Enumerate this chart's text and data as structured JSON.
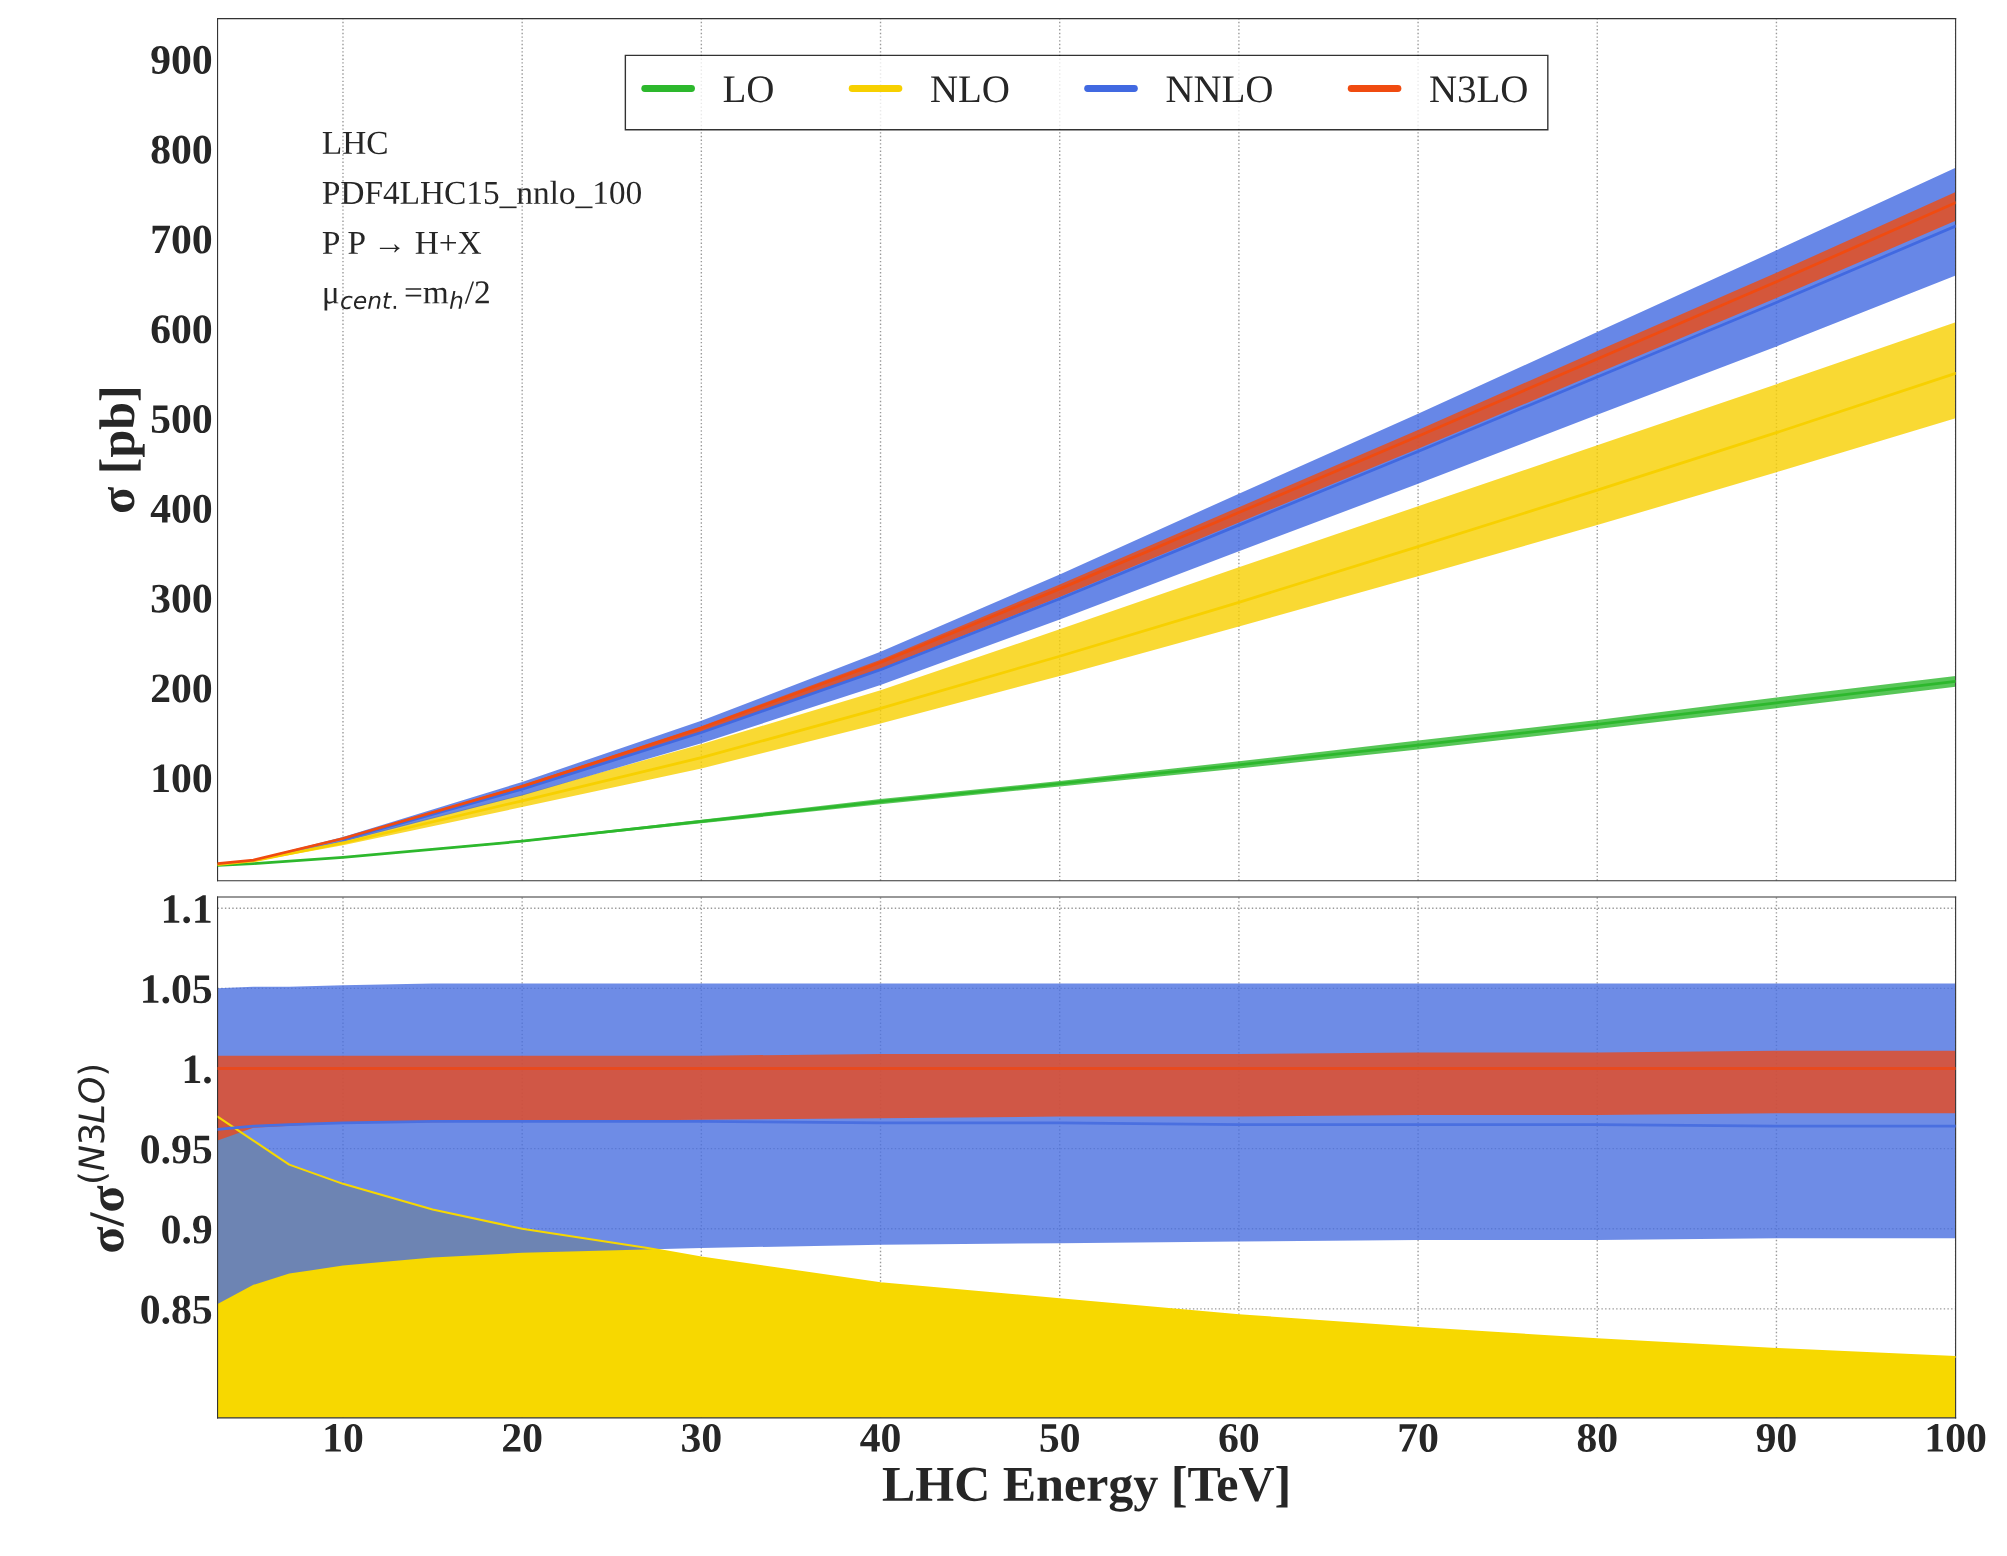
{
  "chart_data": [
    {
      "type": "line",
      "ylabel": "σ [pb]",
      "x": [
        3,
        5,
        10,
        20,
        30,
        40,
        50,
        60,
        70,
        80,
        90,
        100
      ],
      "xlim": [
        3,
        100
      ],
      "xticks": [
        10,
        20,
        30,
        40,
        50,
        60,
        70,
        80,
        90,
        100
      ],
      "ylim": [
        -15,
        945
      ],
      "yticks": [
        100,
        200,
        300,
        400,
        500,
        600,
        700,
        800,
        900
      ],
      "tick_labels": "y",
      "grid": "x",
      "legend": "top",
      "annotations": [
        "LHC",
        "PDF4LHC15_nnlo_100",
        "P P → H+X",
        "μ$_{cent.}$=m$_{h}$/2"
      ],
      "series": [
        {
          "name": "LO",
          "color": "#2db82d",
          "values": [
            2,
            4,
            11,
            29,
            51,
            73,
            93,
            114,
            136,
            159,
            183,
            207
          ],
          "lower": [
            1.4,
            3.3,
            10.5,
            28,
            49,
            70,
            90,
            110,
            131,
            154,
            177,
            201
          ],
          "upper": [
            1.6,
            3.7,
            11.5,
            30,
            53,
            76,
            96,
            118,
            141,
            164,
            189,
            213
          ]
        },
        {
          "name": "NLO",
          "color": "#f7d000",
          "values": [
            3,
            7,
            27,
            74,
            122,
            177,
            235,
            295,
            357,
            420,
            484,
            550
          ],
          "lower": [
            2.8,
            6.3,
            24.5,
            67,
            110,
            160,
            213,
            268,
            324,
            381,
            440,
            500
          ],
          "upper": [
            3.4,
            7.6,
            29.7,
            81,
            137,
            197,
            265,
            334,
            402,
            470,
            538,
            607
          ]
        },
        {
          "name": "NNLO",
          "color": "#4169e1",
          "values": [
            null,
            null,
            31,
            87,
            150,
            220,
            299,
            381,
            463,
            546,
            629,
            714
          ],
          "lower": [
            3.1,
            7,
            28.5,
            80,
            138,
            203,
            276,
            352,
            427,
            504,
            580,
            659
          ],
          "upper": [
            3.7,
            8.4,
            33.7,
            95,
            163,
            240,
            326,
            416,
            505,
            596,
            687,
            779
          ]
        },
        {
          "name": "N3LO",
          "color": "#f04b10",
          "values": [
            4,
            8,
            32,
            90,
            155,
            228,
            310,
            395,
            480,
            566,
            652,
            740
          ],
          "lower": [
            3.4,
            7.8,
            31,
            87,
            150,
            221,
            301,
            384,
            466,
            550,
            634,
            720
          ],
          "upper": [
            3.55,
            8.1,
            32.5,
            91.5,
            157,
            231,
            315,
            401,
            487,
            575,
            662,
            752
          ]
        }
      ]
    },
    {
      "type": "line",
      "xlabel": "LHC Energy [TeV]",
      "ylabel": "σ/σ$^{(N3LO)}$",
      "xlim": [
        3,
        100
      ],
      "xticks": [
        10,
        20,
        30,
        40,
        50,
        60,
        70,
        80,
        90,
        100
      ],
      "ylim": [
        0.782,
        1.107
      ],
      "yticks": [
        0.85,
        0.9,
        0.95,
        {
          "value": 1,
          "label": "1."
        },
        1.05,
        1.1
      ],
      "grid": true,
      "series": [
        {
          "type": "area",
          "color": "#f7d800",
          "x": [
            3,
            5,
            7,
            10,
            15,
            20,
            27,
            30,
            40,
            50,
            60,
            70,
            80,
            90,
            100
          ],
          "values": [
            0.97,
            0.955,
            0.94,
            0.928,
            0.912,
            0.9,
            0.888,
            0.882,
            0.866,
            0.856,
            0.846,
            0.838,
            0.831,
            0.825,
            0.82
          ]
        },
        {
          "color": "#4a6fe0",
          "x": [
            3,
            5,
            7,
            10,
            15,
            20,
            30,
            40,
            50,
            60,
            70,
            80,
            90,
            100
          ],
          "values": [
            0.962,
            0.964,
            0.965,
            0.966,
            0.967,
            0.967,
            0.967,
            0.966,
            0.966,
            0.965,
            0.965,
            0.965,
            0.964,
            0.964
          ],
          "lower": [
            0.853,
            0.865,
            0.872,
            0.877,
            0.882,
            0.885,
            0.888,
            0.89,
            0.891,
            0.892,
            0.893,
            0.893,
            0.894,
            0.894
          ],
          "upper": [
            1.05,
            1.051,
            1.051,
            1.052,
            1.053,
            1.053,
            1.053,
            1.053,
            1.053,
            1.053,
            1.053,
            1.053,
            1.053,
            1.053
          ]
        },
        {
          "color": "#e84a1e",
          "x": [
            3,
            5,
            10,
            20,
            30,
            40,
            50,
            60,
            70,
            80,
            90,
            100
          ],
          "values": [
            1,
            1,
            1,
            1,
            1,
            1,
            1,
            1,
            1,
            1,
            1,
            1
          ],
          "lower": [
            0.955,
            0.963,
            0.966,
            0.967,
            0.968,
            0.969,
            0.97,
            0.97,
            0.971,
            0.971,
            0.972,
            0.972
          ],
          "upper": [
            1.008,
            1.008,
            1.008,
            1.008,
            1.008,
            1.009,
            1.009,
            1.009,
            1.01,
            1.01,
            1.011,
            1.011
          ]
        }
      ]
    }
  ]
}
